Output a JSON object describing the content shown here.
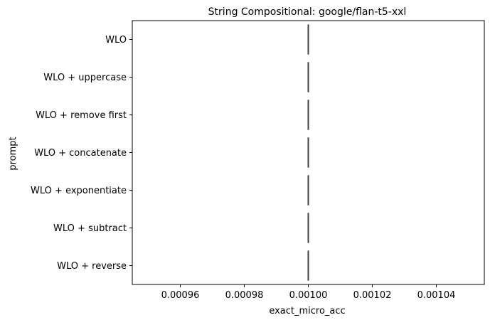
{
  "chart_data": {
    "type": "box",
    "title": "String Compositional: google/flan-t5-xxl",
    "xlabel": "exact_micro_acc",
    "ylabel": "prompt",
    "categories": [
      "WLO",
      "WLO + uppercase",
      "WLO + remove first",
      "WLO + concatenate",
      "WLO + exponentiate",
      "WLO + subtract",
      "WLO + reverse"
    ],
    "values": [
      0.001,
      0.001,
      0.001,
      0.001,
      0.001,
      0.001,
      0.001
    ],
    "xlim": [
      0.000945,
      0.001055
    ],
    "xticks": [
      0.00096,
      0.00098,
      0.001,
      0.00102,
      0.00104
    ],
    "xtick_labels": [
      "0.00096",
      "0.00098",
      "0.00100",
      "0.00102",
      "0.00104"
    ],
    "grid": false,
    "line_color": "#3f3f3f"
  }
}
